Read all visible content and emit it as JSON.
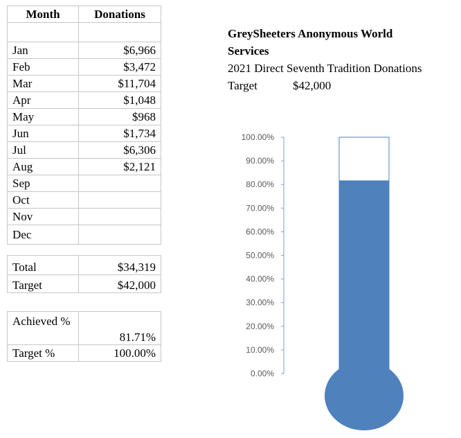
{
  "table": {
    "headers": [
      "Month",
      "Donations"
    ],
    "rows": [
      {
        "month": "Jan",
        "donation": "$6,966"
      },
      {
        "month": "Feb",
        "donation": "$3,472"
      },
      {
        "month": "Mar",
        "donation": "$11,704"
      },
      {
        "month": "Apr",
        "donation": "$1,048"
      },
      {
        "month": "May",
        "donation": "$968"
      },
      {
        "month": "Jun",
        "donation": "$1,734"
      },
      {
        "month": "Jul",
        "donation": "$6,306"
      },
      {
        "month": "Aug",
        "donation": "$2,121"
      },
      {
        "month": "Sep",
        "donation": ""
      },
      {
        "month": "Oct",
        "donation": ""
      },
      {
        "month": "Nov",
        "donation": ""
      },
      {
        "month": "Dec",
        "donation": ""
      }
    ]
  },
  "summary": {
    "total_label": "Total",
    "total_value": "$34,319",
    "target_label": "Target",
    "target_value": "$42,000"
  },
  "achievement": {
    "achieved_label": "Achieved %",
    "achieved_value": "81.71%",
    "target_pct_label": "Target %",
    "target_pct_value": "100.00%"
  },
  "info": {
    "org_line1": "GreySheeters Anonymous World",
    "org_line2": "Services",
    "subtitle": "2021 Direct Seventh Tradition Donations",
    "target_label": "Target",
    "target_value": "$42,000"
  },
  "chart_data": {
    "type": "bar",
    "categories": [
      ""
    ],
    "series": [
      {
        "values": [
          81.71
        ]
      },
      {
        "values": [
          100
        ]
      }
    ],
    "ylim": [
      0,
      100
    ],
    "yticks": [
      "0.00%",
      "10.00%",
      "20.00%",
      "30.00%",
      "40.00%",
      "50.00%",
      "60.00%",
      "70.00%",
      "80.00%",
      "90.00%",
      "100.00%"
    ],
    "colors": {
      "fill": "#4f81bd",
      "outline": "#4f81bd",
      "axis": "#7f9fcf"
    },
    "style": "thermometer"
  }
}
